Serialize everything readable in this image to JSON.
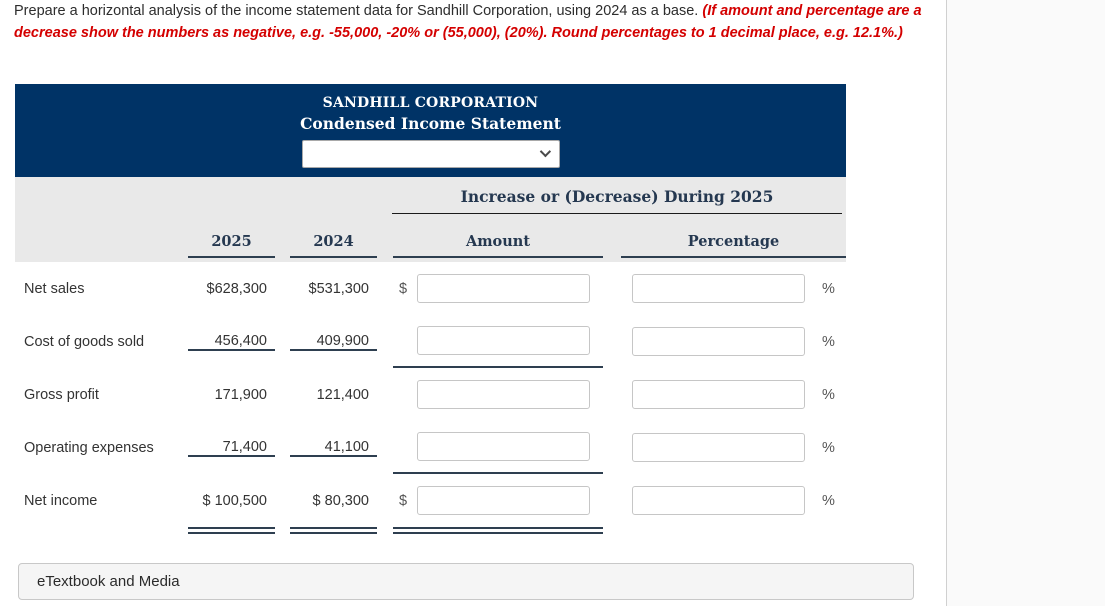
{
  "instructions": {
    "text_black": "Prepare a horizontal analysis of the income statement data for Sandhill Corporation, using 2024 as a base. ",
    "text_red": "(If amount and percentage are a decrease show the numbers as negative, e.g. -55,000, -20% or (55,000), (20%). Round percentages to 1 decimal place, e.g. 12.1%.)"
  },
  "statement": {
    "company": "SANDHILL CORPORATION",
    "title": "Condensed Income Statement",
    "period_select": {
      "value": "",
      "options": [
        ""
      ]
    },
    "group_header": "Increase or (Decrease) During 2025",
    "columns": {
      "year_current": "2025",
      "year_prior": "2024",
      "amount": "Amount",
      "percentage": "Percentage"
    },
    "rows": [
      {
        "label": "Net sales",
        "y2025": "$628,300",
        "y2024": "$531,300",
        "amount_prefix": "$",
        "amount_value": "",
        "pct_value": "",
        "pct_suffix": "%"
      },
      {
        "label": "Cost of goods sold",
        "y2025": "456,400",
        "y2024": "409,900",
        "amount_prefix": "",
        "amount_value": "",
        "pct_value": "",
        "pct_suffix": "%"
      },
      {
        "label": "Gross profit",
        "y2025": "171,900",
        "y2024": "121,400",
        "amount_prefix": "",
        "amount_value": "",
        "pct_value": "",
        "pct_suffix": "%"
      },
      {
        "label": "Operating expenses",
        "y2025": "71,400",
        "y2024": "41,100",
        "amount_prefix": "",
        "amount_value": "",
        "pct_value": "",
        "pct_suffix": "%"
      },
      {
        "label": "Net income",
        "y2025": "$ 100,500",
        "y2024": "$ 80,300",
        "amount_prefix": "$",
        "amount_value": "",
        "pct_value": "",
        "pct_suffix": "%"
      }
    ]
  },
  "footer": {
    "etextbook_label": "eTextbook and Media"
  },
  "colors": {
    "navy": "#003366",
    "header_text": "#253850",
    "rule": "#2e3f50",
    "red": "#d40000",
    "band_gray": "#e9e9e9"
  }
}
